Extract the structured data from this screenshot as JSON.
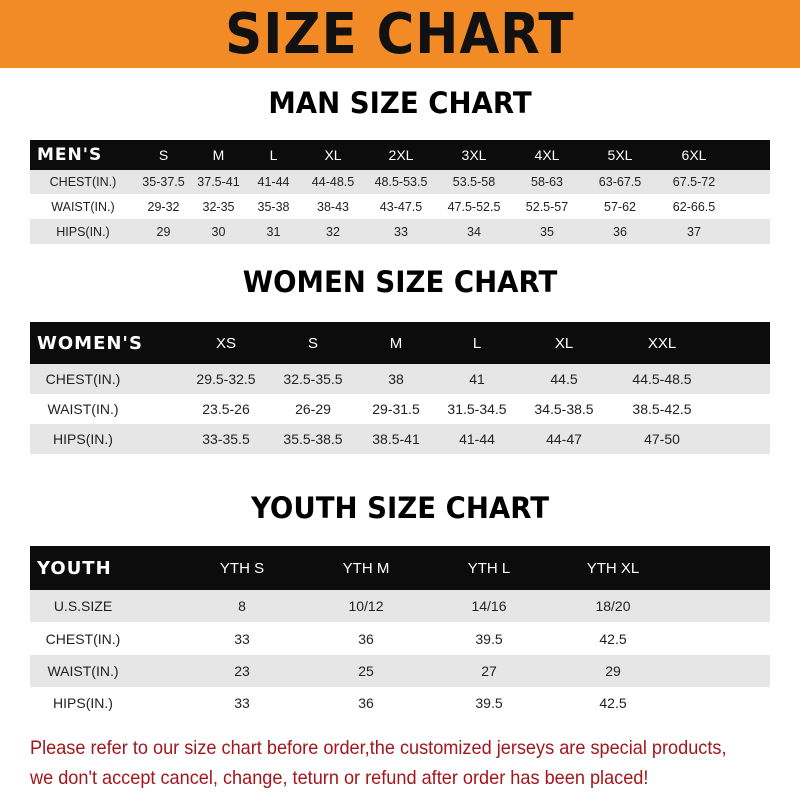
{
  "banner_title": "SIZE CHART",
  "men": {
    "title": "MAN SIZE CHART",
    "header": "MEN'S",
    "sizes": [
      "S",
      "M",
      "L",
      "XL",
      "2XL",
      "3XL",
      "4XL",
      "5XL",
      "6XL"
    ],
    "rows": [
      {
        "label": "CHEST(IN.)",
        "values": [
          "35-37.5",
          "37.5-41",
          "41-44",
          "44-48.5",
          "48.5-53.5",
          "53.5-58",
          "58-63",
          "63-67.5",
          "67.5-72"
        ]
      },
      {
        "label": "WAIST(IN.)",
        "values": [
          "29-32",
          "32-35",
          "35-38",
          "38-43",
          "43-47.5",
          "47.5-52.5",
          "52.5-57",
          "57-62",
          "62-66.5"
        ]
      },
      {
        "label": "HIPS(IN.)",
        "values": [
          "29",
          "30",
          "31",
          "32",
          "33",
          "34",
          "35",
          "36",
          "37"
        ]
      }
    ]
  },
  "women": {
    "title": "WOMEN SIZE CHART",
    "header": "WOMEN'S",
    "sizes": [
      "XS",
      "S",
      "M",
      "L",
      "XL",
      "XXL"
    ],
    "rows": [
      {
        "label": "CHEST(IN.)",
        "values": [
          "29.5-32.5",
          "32.5-35.5",
          "38",
          "41",
          "44.5",
          "44.5-48.5"
        ]
      },
      {
        "label": "WAIST(IN.)",
        "values": [
          "23.5-26",
          "26-29",
          "29-31.5",
          "31.5-34.5",
          "34.5-38.5",
          "38.5-42.5"
        ]
      },
      {
        "label": "HIPS(IN.)",
        "values": [
          "33-35.5",
          "35.5-38.5",
          "38.5-41",
          "41-44",
          "44-47",
          "47-50"
        ]
      }
    ]
  },
  "youth": {
    "title": "YOUTH SIZE CHART",
    "header": "YOUTH",
    "sizes": [
      "YTH S",
      "YTH M",
      "YTH L",
      "YTH XL"
    ],
    "rows": [
      {
        "label": "U.S.SIZE",
        "values": [
          "8",
          "10/12",
          "14/16",
          "18/20"
        ]
      },
      {
        "label": "CHEST(IN.)",
        "values": [
          "33",
          "36",
          "39.5",
          "42.5"
        ]
      },
      {
        "label": "WAIST(IN.)",
        "values": [
          "23",
          "25",
          "27",
          "29"
        ]
      },
      {
        "label": "HIPS(IN.)",
        "values": [
          "33",
          "36",
          "39.5",
          "42.5"
        ]
      }
    ]
  },
  "note": "Please refer to our size chart before order,the customized jerseys are special products, we don't accept cancel, change, teturn or refund after order has been placed!",
  "colors": {
    "banner": "#f28a26",
    "header_row": "#0c0c0c",
    "stripe": "#e6e6e6",
    "note": "#a3161b"
  }
}
